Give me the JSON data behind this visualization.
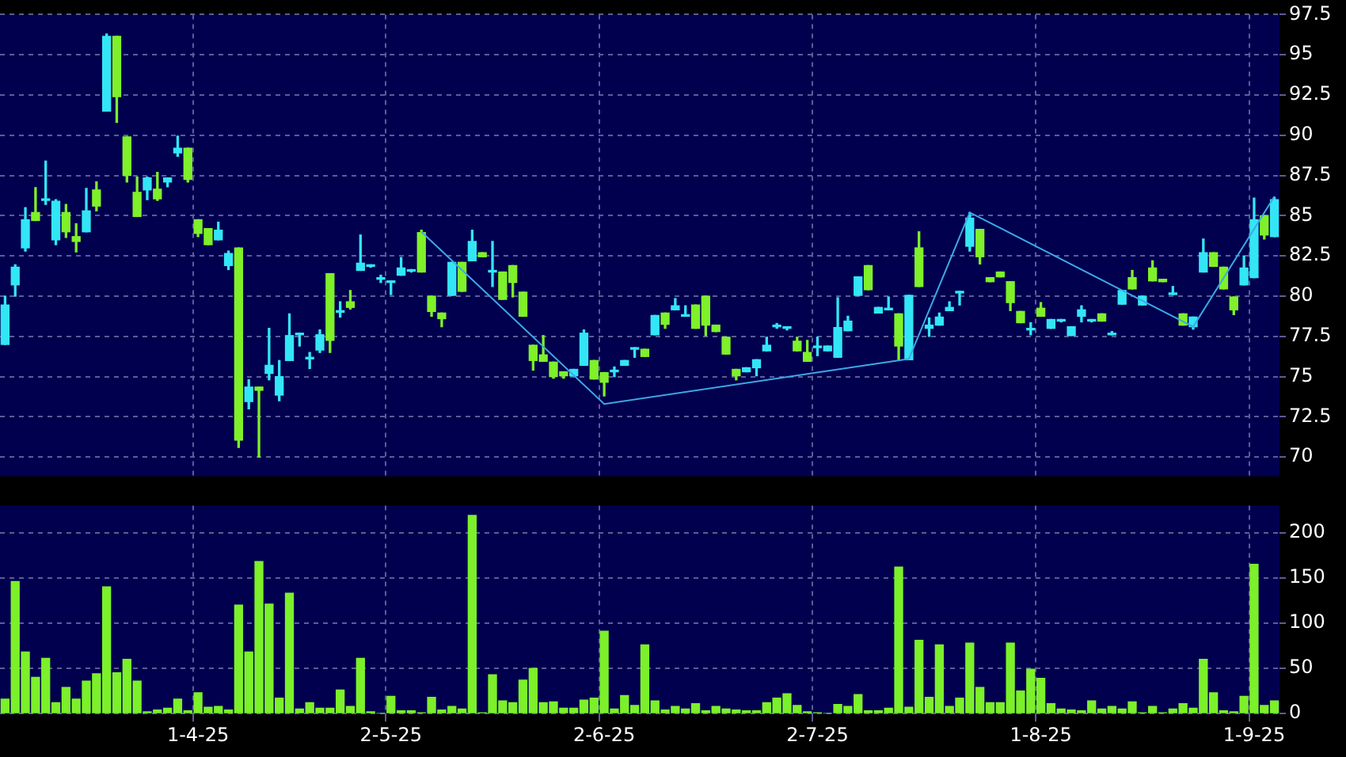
{
  "chart_data": [
    {
      "type": "candlestick",
      "categories": [
        null,
        null,
        null,
        null,
        null,
        null,
        null,
        null,
        null,
        null,
        null,
        null,
        null,
        null,
        null,
        null,
        null,
        null,
        null,
        null,
        null,
        null,
        null,
        null,
        null,
        null,
        null,
        null,
        null,
        null,
        null,
        null,
        null,
        null,
        null,
        null,
        null,
        null,
        null,
        null,
        null,
        null,
        null,
        null,
        null,
        null,
        null,
        null,
        null,
        null,
        null,
        null,
        null,
        null,
        null,
        null,
        null,
        null,
        null,
        null,
        null,
        null,
        null,
        null,
        null,
        null,
        null,
        null,
        null,
        null,
        null,
        null,
        null,
        null,
        null,
        null,
        null,
        null,
        null,
        null,
        null,
        null,
        null,
        null,
        null,
        null,
        null,
        null,
        null,
        null,
        null,
        null,
        null,
        null,
        null,
        null,
        null,
        null,
        null,
        null,
        null,
        null,
        null,
        null,
        null,
        null,
        null,
        null,
        null,
        null,
        null,
        null,
        null,
        null,
        null,
        null,
        null,
        null,
        null,
        null,
        null,
        null,
        null,
        null,
        null,
        null
      ],
      "ohlc": [
        [
          77.0,
          80.0,
          77.0,
          79.45
        ],
        [
          80.7,
          81.95,
          80.0,
          81.8
        ],
        [
          83.0,
          85.5,
          82.8,
          84.75
        ],
        [
          85.2,
          86.75,
          84.7,
          84.7
        ],
        [
          85.95,
          88.4,
          85.7,
          86.05
        ],
        [
          83.5,
          86.0,
          83.2,
          85.9
        ],
        [
          85.2,
          85.7,
          83.65,
          84.0
        ],
        [
          83.7,
          84.5,
          82.75,
          83.4
        ],
        [
          84.0,
          86.7,
          84.0,
          85.3
        ],
        [
          86.6,
          87.1,
          85.3,
          85.6
        ],
        [
          91.5,
          96.3,
          91.5,
          96.15
        ],
        [
          96.15,
          96.15,
          90.8,
          92.4
        ],
        [
          89.9,
          89.9,
          87.1,
          87.5
        ],
        [
          86.45,
          87.4,
          84.95,
          84.95
        ],
        [
          86.6,
          87.4,
          86.0,
          87.35
        ],
        [
          86.65,
          87.7,
          85.95,
          86.05
        ],
        [
          87.1,
          87.35,
          86.8,
          87.35
        ],
        [
          88.9,
          89.95,
          88.7,
          89.2
        ],
        [
          89.2,
          89.2,
          87.1,
          87.25
        ],
        [
          84.75,
          84.75,
          83.7,
          83.9
        ],
        [
          84.2,
          84.2,
          83.2,
          83.2
        ],
        [
          83.5,
          84.6,
          83.5,
          84.1
        ],
        [
          81.9,
          82.8,
          81.65,
          82.65
        ],
        [
          83.0,
          83.0,
          70.6,
          71.05
        ],
        [
          73.45,
          74.8,
          73.0,
          74.35
        ],
        [
          74.35,
          74.35,
          70.0,
          74.15
        ],
        [
          75.2,
          78.0,
          74.8,
          75.7
        ],
        [
          73.85,
          76.0,
          73.5,
          75.0
        ],
        [
          76.0,
          78.9,
          76.0,
          77.55
        ],
        [
          77.6,
          77.7,
          76.9,
          77.7
        ],
        [
          76.1,
          76.5,
          75.5,
          76.2
        ],
        [
          76.65,
          77.9,
          76.5,
          77.6
        ],
        [
          81.4,
          81.4,
          76.5,
          77.25
        ],
        [
          79.0,
          79.65,
          78.7,
          79.1
        ],
        [
          79.65,
          80.35,
          79.2,
          79.3
        ],
        [
          81.6,
          83.8,
          81.6,
          82.05
        ],
        [
          81.85,
          81.95,
          81.8,
          81.95
        ],
        [
          81.05,
          81.3,
          80.85,
          81.15
        ],
        [
          80.85,
          80.95,
          80.1,
          80.95
        ],
        [
          81.3,
          82.4,
          81.3,
          81.75
        ],
        [
          81.55,
          81.65,
          81.5,
          81.65
        ],
        [
          83.95,
          84.1,
          81.5,
          81.5
        ],
        [
          80.0,
          80.0,
          78.75,
          79.05
        ],
        [
          78.95,
          78.95,
          78.1,
          78.6
        ],
        [
          80.05,
          82.1,
          80.05,
          82.1
        ],
        [
          82.1,
          82.1,
          80.3,
          80.3
        ],
        [
          82.2,
          84.1,
          82.2,
          83.4
        ],
        [
          82.7,
          82.7,
          82.45,
          82.45
        ],
        [
          81.5,
          83.4,
          80.6,
          81.6
        ],
        [
          81.5,
          81.5,
          79.8,
          79.8
        ],
        [
          81.9,
          81.9,
          79.95,
          80.85
        ],
        [
          80.25,
          80.25,
          78.75,
          78.75
        ],
        [
          76.95,
          76.95,
          75.4,
          76.0
        ],
        [
          76.35,
          77.55,
          75.95,
          75.95
        ],
        [
          75.9,
          75.9,
          74.9,
          75.0
        ],
        [
          75.3,
          75.3,
          74.9,
          75.05
        ],
        [
          75.05,
          75.45,
          75.05,
          75.45
        ],
        [
          75.7,
          77.9,
          75.7,
          77.7
        ],
        [
          76.0,
          76.0,
          74.85,
          74.85
        ],
        [
          75.25,
          75.25,
          73.8,
          74.65
        ],
        [
          75.3,
          75.6,
          75.0,
          75.4
        ],
        [
          75.7,
          76.0,
          75.7,
          76.0
        ],
        [
          76.7,
          76.8,
          76.2,
          76.8
        ],
        [
          76.7,
          76.7,
          76.25,
          76.25
        ],
        [
          77.6,
          78.8,
          77.6,
          78.8
        ],
        [
          78.95,
          78.95,
          78.0,
          78.25
        ],
        [
          79.15,
          79.85,
          79.15,
          79.4
        ],
        [
          78.75,
          79.4,
          78.75,
          78.85
        ],
        [
          79.45,
          79.45,
          78.0,
          78.0
        ],
        [
          80.0,
          80.0,
          77.55,
          78.2
        ],
        [
          78.2,
          78.2,
          77.8,
          77.8
        ],
        [
          77.45,
          77.45,
          76.4,
          76.4
        ],
        [
          75.45,
          75.45,
          74.8,
          75.05
        ],
        [
          75.3,
          75.55,
          75.3,
          75.55
        ],
        [
          75.55,
          76.05,
          75.05,
          76.05
        ],
        [
          76.6,
          77.45,
          76.6,
          76.95
        ],
        [
          78.1,
          78.3,
          78.0,
          78.2
        ],
        [
          78.0,
          78.1,
          77.9,
          78.1
        ],
        [
          77.2,
          77.45,
          76.6,
          76.6
        ],
        [
          76.5,
          77.25,
          75.95,
          75.95
        ],
        [
          76.8,
          77.45,
          76.3,
          76.9
        ],
        [
          76.6,
          76.9,
          76.6,
          76.9
        ],
        [
          76.2,
          79.9,
          76.2,
          78.05
        ],
        [
          77.85,
          78.75,
          77.85,
          78.45
        ],
        [
          80.05,
          81.2,
          80.05,
          81.2
        ],
        [
          81.9,
          81.9,
          80.4,
          80.4
        ],
        [
          78.95,
          79.3,
          78.95,
          79.3
        ],
        [
          79.15,
          79.95,
          79.15,
          79.25
        ],
        [
          78.9,
          78.9,
          76.05,
          76.9
        ],
        [
          76.05,
          80.05,
          76.05,
          80.05
        ],
        [
          83.0,
          84.0,
          80.6,
          80.6
        ],
        [
          78.0,
          78.65,
          77.5,
          78.2
        ],
        [
          78.2,
          78.95,
          78.2,
          78.7
        ],
        [
          79.1,
          79.65,
          79.1,
          79.3
        ],
        [
          80.2,
          80.3,
          79.45,
          80.3
        ],
        [
          83.1,
          85.2,
          82.8,
          84.85
        ],
        [
          84.15,
          84.15,
          82.0,
          82.45
        ],
        [
          81.15,
          81.15,
          80.9,
          80.9
        ],
        [
          81.5,
          81.5,
          81.2,
          81.2
        ],
        [
          80.9,
          80.9,
          79.1,
          79.6
        ],
        [
          79.05,
          79.05,
          78.35,
          78.35
        ],
        [
          77.9,
          78.35,
          77.6,
          78.0
        ],
        [
          79.25,
          79.6,
          78.75,
          78.75
        ],
        [
          78.0,
          78.55,
          78.0,
          78.55
        ],
        [
          78.45,
          78.55,
          78.4,
          78.55
        ],
        [
          77.55,
          78.1,
          77.55,
          78.1
        ],
        [
          78.75,
          79.4,
          78.4,
          79.15
        ],
        [
          78.45,
          78.55,
          78.4,
          78.55
        ],
        [
          78.9,
          78.9,
          78.45,
          78.45
        ],
        [
          77.6,
          77.8,
          77.6,
          77.7
        ],
        [
          79.5,
          80.35,
          79.5,
          80.35
        ],
        [
          81.15,
          81.6,
          80.45,
          80.45
        ],
        [
          79.45,
          80.0,
          79.45,
          80.0
        ],
        [
          81.75,
          82.2,
          80.95,
          80.95
        ],
        [
          81.05,
          81.05,
          80.9,
          80.9
        ],
        [
          80.1,
          80.6,
          80.1,
          80.2
        ],
        [
          78.9,
          78.9,
          78.2,
          78.2
        ],
        [
          78.1,
          78.7,
          77.95,
          78.7
        ],
        [
          81.5,
          83.55,
          81.5,
          82.7
        ],
        [
          82.7,
          82.7,
          81.85,
          81.85
        ],
        [
          81.8,
          81.8,
          80.45,
          80.45
        ],
        [
          79.95,
          79.95,
          78.85,
          79.15
        ],
        [
          80.7,
          82.5,
          80.7,
          81.75
        ],
        [
          81.15,
          86.1,
          81.15,
          84.75
        ],
        [
          85.0,
          85.0,
          83.55,
          83.8
        ],
        [
          83.7,
          86.15,
          83.7,
          86.0
        ]
      ],
      "colors": [
        "#33e6f5",
        "#33e6f5",
        "#33e6f5",
        "#7ff02a",
        "#33e6f5",
        "#33e6f5",
        "#7ff02a",
        "#7ff02a",
        "#33e6f5",
        "#7ff02a",
        "#33e6f5",
        "#7ff02a",
        "#7ff02a",
        "#7ff02a",
        "#33e6f5",
        "#7ff02a",
        "#33e6f5",
        "#33e6f5",
        "#7ff02a",
        "#7ff02a",
        "#7ff02a",
        "#33e6f5",
        "#33e6f5",
        "#7ff02a",
        "#33e6f5",
        "#7ff02a",
        "#33e6f5",
        "#33e6f5",
        "#33e6f5",
        "#33e6f5",
        "#33e6f5",
        "#33e6f5",
        "#7ff02a",
        "#33e6f5",
        "#7ff02a",
        "#33e6f5",
        "#33e6f5",
        "#33e6f5",
        "#33e6f5",
        "#33e6f5",
        "#33e6f5",
        "#7ff02a",
        "#7ff02a",
        "#7ff02a",
        "#33e6f5",
        "#7ff02a",
        "#33e6f5",
        "#7ff02a",
        "#33e6f5",
        "#7ff02a",
        "#7ff02a",
        "#7ff02a",
        "#7ff02a",
        "#7ff02a",
        "#7ff02a",
        "#7ff02a",
        "#33e6f5",
        "#33e6f5",
        "#7ff02a",
        "#7ff02a",
        "#33e6f5",
        "#33e6f5",
        "#33e6f5",
        "#7ff02a",
        "#33e6f5",
        "#7ff02a",
        "#33e6f5",
        "#33e6f5",
        "#7ff02a",
        "#7ff02a",
        "#7ff02a",
        "#7ff02a",
        "#7ff02a",
        "#33e6f5",
        "#33e6f5",
        "#33e6f5",
        "#33e6f5",
        "#33e6f5",
        "#7ff02a",
        "#7ff02a",
        "#33e6f5",
        "#33e6f5",
        "#33e6f5",
        "#33e6f5",
        "#33e6f5",
        "#7ff02a",
        "#33e6f5",
        "#33e6f5",
        "#7ff02a",
        "#33e6f5",
        "#7ff02a",
        "#33e6f5",
        "#33e6f5",
        "#33e6f5",
        "#33e6f5",
        "#33e6f5",
        "#7ff02a",
        "#7ff02a",
        "#7ff02a",
        "#7ff02a",
        "#7ff02a",
        "#33e6f5",
        "#7ff02a",
        "#33e6f5",
        "#33e6f5",
        "#33e6f5",
        "#33e6f5",
        "#33e6f5",
        "#7ff02a",
        "#33e6f5",
        "#33e6f5",
        "#7ff02a",
        "#33e6f5",
        "#7ff02a",
        "#7ff02a",
        "#33e6f5",
        "#7ff02a",
        "#33e6f5",
        "#33e6f5",
        "#7ff02a",
        "#7ff02a",
        "#7ff02a",
        "#33e6f5",
        "#33e6f5",
        "#7ff02a",
        "#33e6f5"
      ],
      "series": [
        {
          "type": "line",
          "color": "#3ea8e6",
          "values": [
            null,
            null,
            null,
            null,
            null,
            null,
            null,
            null,
            null,
            null,
            null,
            null,
            null,
            null,
            null,
            null,
            null,
            null,
            null,
            null,
            null,
            null,
            null,
            null,
            null,
            null,
            null,
            null,
            null,
            null,
            null,
            null,
            null,
            null,
            null,
            null,
            null,
            null,
            null,
            null,
            null,
            84.0,
            null,
            null,
            null,
            null,
            null,
            null,
            null,
            null,
            null,
            null,
            null,
            null,
            null,
            null,
            null,
            null,
            null,
            73.3,
            null,
            null,
            null,
            null,
            null,
            null,
            null,
            null,
            null,
            null,
            null,
            null,
            null,
            null,
            null,
            null,
            null,
            null,
            null,
            null,
            null,
            null,
            null,
            null,
            null,
            null,
            null,
            null,
            null,
            76.1,
            null,
            null,
            null,
            null,
            null,
            85.2,
            null,
            null,
            null,
            null,
            null,
            null,
            null,
            null,
            null,
            null,
            null,
            null,
            null,
            null,
            null,
            null,
            null,
            null,
            null,
            null,
            null,
            78.1,
            null,
            null,
            null,
            null,
            null,
            null,
            null,
            86.2
          ]
        }
      ],
      "ylim": [
        68.8,
        97.5
      ],
      "yticks": [
        70,
        72.5,
        75,
        77.5,
        80,
        82.5,
        85,
        87.5,
        90,
        92.5,
        95,
        97.5
      ],
      "grid": true,
      "tick_labels": "y"
    },
    {
      "type": "bar",
      "categories": [
        null,
        null,
        null,
        null,
        null,
        null,
        null,
        null,
        null,
        null,
        null,
        null,
        null,
        null,
        null,
        null,
        null,
        null,
        null,
        "1-4-25",
        null,
        null,
        null,
        null,
        null,
        null,
        null,
        null,
        null,
        null,
        null,
        null,
        null,
        null,
        null,
        null,
        null,
        null,
        "2-5-25",
        null,
        null,
        null,
        null,
        null,
        null,
        null,
        null,
        null,
        null,
        null,
        null,
        null,
        null,
        null,
        null,
        null,
        null,
        null,
        null,
        "2-6-25",
        null,
        null,
        null,
        null,
        null,
        null,
        null,
        null,
        null,
        null,
        null,
        null,
        null,
        null,
        null,
        null,
        null,
        null,
        null,
        null,
        "2-7-25",
        null,
        null,
        null,
        null,
        null,
        null,
        null,
        null,
        null,
        null,
        null,
        null,
        null,
        null,
        null,
        null,
        null,
        null,
        null,
        null,
        null,
        "1-8-25",
        null,
        null,
        null,
        null,
        null,
        null,
        null,
        null,
        null,
        null,
        null,
        null,
        null,
        null,
        null,
        null,
        null,
        null,
        null,
        null,
        "1-9-25",
        null,
        null
      ],
      "values": [
        16,
        146,
        68,
        40,
        61,
        12,
        29,
        16,
        36,
        44,
        140,
        45,
        60,
        36,
        2,
        4,
        6,
        16,
        3,
        23,
        7,
        8,
        4,
        120,
        68,
        168,
        121,
        17,
        133,
        5,
        12,
        6,
        6,
        26,
        8,
        61,
        2,
        0,
        19,
        3,
        3,
        1,
        18,
        4,
        8,
        5,
        219,
        1,
        43,
        14,
        12,
        37,
        50,
        12,
        13,
        6,
        6,
        15,
        17,
        91,
        5,
        20,
        9,
        76,
        14,
        4,
        8,
        5,
        11,
        3,
        8,
        5,
        4,
        3,
        3,
        12,
        17,
        22,
        9,
        2,
        1,
        0,
        10,
        8,
        21,
        3,
        3,
        6,
        162,
        7,
        81,
        18,
        76,
        8,
        17,
        78,
        29,
        12,
        12,
        78,
        25,
        49,
        39,
        11,
        5,
        4,
        3,
        14,
        5,
        8,
        5,
        13,
        1,
        8,
        1,
        5,
        11,
        6,
        60,
        23,
        3,
        2,
        19,
        165,
        9,
        14
      ],
      "color": "#7cf02a",
      "ylim": [
        0,
        230
      ],
      "yticks": [
        0,
        50,
        100,
        150,
        200
      ],
      "grid": true
    }
  ]
}
